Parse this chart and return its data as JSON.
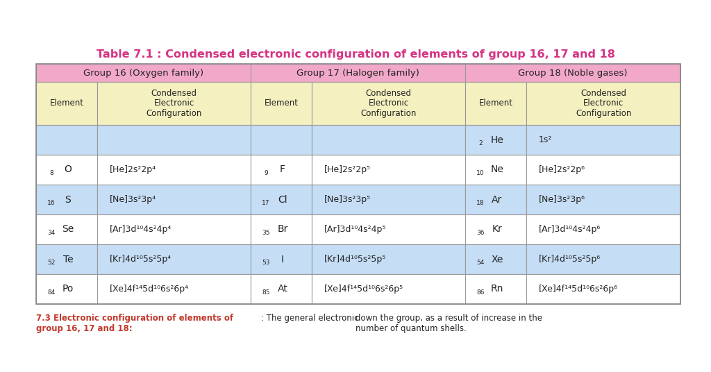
{
  "title": "Table 7.1 : Condensed electronic configuration of elements of group 16, 17 and 18",
  "title_color": "#d63384",
  "bg_color": "#ffffff",
  "header_bg": "#f2a8c8",
  "subheader_bg": "#f5f0c0",
  "row_bg_blue": "#c5ddf5",
  "row_bg_white": "#ffffff",
  "border_color": "#aaaaaa",
  "data_rows": [
    {
      "elem16": "",
      "num16": "",
      "config16": "",
      "elem17": "",
      "num17": "",
      "config17": "",
      "elem18": "He",
      "num18": "2",
      "config18": "1s²",
      "row_bg": "#c5ddf5"
    },
    {
      "elem16": "O",
      "num16": "8",
      "config16": "[He]2s²2p⁴",
      "elem17": "F",
      "num17": "9",
      "config17": "[He]2s²2p⁵",
      "elem18": "Ne",
      "num18": "10",
      "config18": "[He]2s²2p⁶",
      "row_bg": "#ffffff"
    },
    {
      "elem16": "S",
      "num16": "16",
      "config16": "[Ne]3s²3p⁴",
      "elem17": "Cl",
      "num17": "17",
      "config17": "[Ne]3s²3p⁵",
      "elem18": "Ar",
      "num18": "18",
      "config18": "[Ne]3s²3p⁶",
      "row_bg": "#c5ddf5"
    },
    {
      "elem16": "Se",
      "num16": "34",
      "config16": "[Ar]3d¹⁰4s²4p⁴",
      "elem17": "Br",
      "num17": "35",
      "config17": "[Ar]3d¹⁰4s²4p⁵",
      "elem18": "Kr",
      "num18": "36",
      "config18": "[Ar]3d¹⁰4s²4p⁶",
      "row_bg": "#ffffff"
    },
    {
      "elem16": "Te",
      "num16": "52",
      "config16": "[Kr]4d¹⁰5s²5p⁴",
      "elem17": "I",
      "num17": "53",
      "config17": "[Kr]4d¹⁰5s²5p⁵",
      "elem18": "Xe",
      "num18": "54",
      "config18": "[Kr]4d¹⁰5s²5p⁶",
      "row_bg": "#c5ddf5"
    },
    {
      "elem16": "Po",
      "num16": "84",
      "config16": "[Xe]4f¹⁴5d¹⁰6s²6p⁴",
      "elem17": "At",
      "num17": "85",
      "config17": "[Xe]4f¹⁴5d¹⁰6s²6p⁵",
      "elem18": "Rn",
      "num18": "86",
      "config18": "[Xe]4f¹⁴5d¹⁰6s²6p⁶",
      "row_bg": "#ffffff"
    }
  ],
  "footer_bold": "7.3 Electronic configuration of elements of\ngroup 16, 17 and 18: ",
  "footer_italic_normal": ": The general electronic",
  "footer_right": "down the group, as a result of increase in the\nnumber of quantum shells.",
  "footer_color": "#c0392b",
  "text_color": "#222222"
}
